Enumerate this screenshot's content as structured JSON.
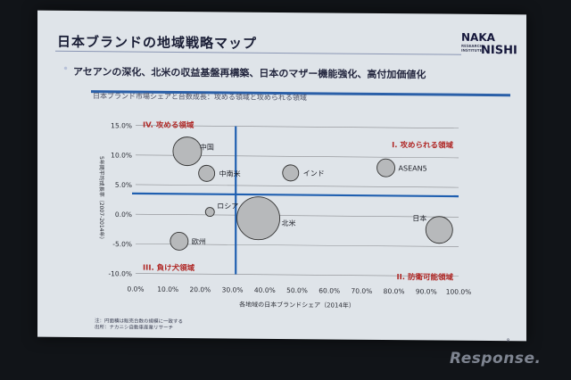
{
  "slide": {
    "title": "日本ブランドの地域戦略マップ",
    "logo_top": "NAKA",
    "logo_bottom": "NISHI",
    "logo_small": "RESEARCH INSTITUTE",
    "bullet": "アセアンの深化、北米の収益基盤再構築、日本のマザー機能強化、高付加価値化",
    "subtitle": "日本ブランド市場シェアと台数成長：攻める領域と攻められる領域",
    "note1": "注：円面積は販売台数の規模に一致する",
    "note2": "出所：ナカニシ自動車産業リサーチ",
    "page_number": "8"
  },
  "watermark": "Response.",
  "colors": {
    "bubble_fill": "#b7b9bb",
    "bubble_stroke": "#333333",
    "divider": "#1f5fb0",
    "quadrant_red": "#b02a28",
    "quadrant_blue": "#2a3a8c"
  },
  "chart_data": {
    "type": "scatter",
    "title": "",
    "xlabel": "各地域の日本ブランドシェア（2014年）",
    "ylabel": "5年間平均成長率（2007-2014年）",
    "xlim": [
      0,
      1.0
    ],
    "ylim": [
      -0.1,
      0.15
    ],
    "x_ticks": [
      "0.0%",
      "10.0%",
      "20.0%",
      "30.0%",
      "40.0%",
      "50.0%",
      "60.0%",
      "70.0%",
      "80.0%",
      "90.0%",
      "100.0%"
    ],
    "y_ticks": [
      "15.0%",
      "10.0%",
      "5.0%",
      "0.0%",
      "-5.0%",
      "-10.0%"
    ],
    "grid": "horizontal",
    "dividers": {
      "x": 0.31,
      "y": 0.035
    },
    "quadrants": [
      {
        "label": "IV. 攻める領域",
        "position": "top-left",
        "color": "red"
      },
      {
        "label": "I. 攻められる領域",
        "position": "top-right",
        "color": "red"
      },
      {
        "label": "III. 負け犬領域",
        "position": "bottom-left",
        "color": "red"
      },
      {
        "label": "II. 防衛可能領域",
        "position": "bottom-right",
        "color": "red"
      }
    ],
    "series": [
      {
        "label": "中国",
        "x": 0.16,
        "y": 0.107,
        "size": 16
      },
      {
        "label": "中南米",
        "x": 0.22,
        "y": 0.07,
        "size": 9
      },
      {
        "label": "インド",
        "x": 0.48,
        "y": 0.072,
        "size": 9
      },
      {
        "label": "ASEAN5",
        "x": 0.775,
        "y": 0.082,
        "size": 10
      },
      {
        "label": "ロシア",
        "x": 0.23,
        "y": 0.005,
        "size": 5
      },
      {
        "label": "北米",
        "x": 0.38,
        "y": -0.005,
        "size": 24
      },
      {
        "label": "日本",
        "x": 0.94,
        "y": -0.022,
        "size": 15
      },
      {
        "label": "欧州",
        "x": 0.135,
        "y": -0.045,
        "size": 10
      }
    ]
  }
}
